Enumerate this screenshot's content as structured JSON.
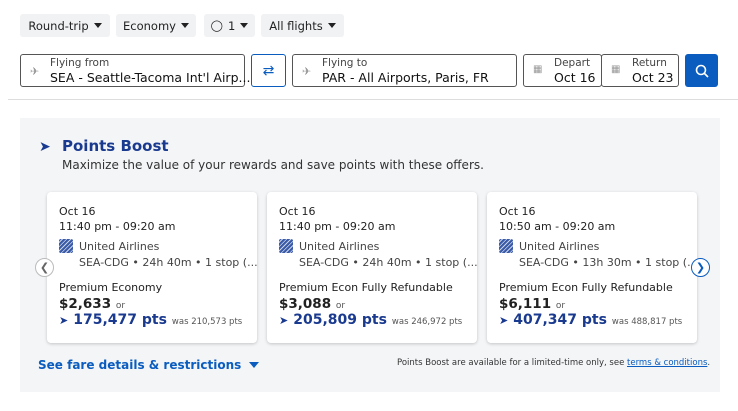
{
  "filters": {
    "trip_type": "Round-trip",
    "cabin": "Economy",
    "passengers": "1",
    "flight_type": "All flights"
  },
  "search": {
    "from_label": "Flying from",
    "from_value": "SEA - Seattle-Tacoma Int'l Airp...",
    "to_label": "Flying to",
    "to_value": "PAR - All Airports, Paris, FR",
    "depart_label": "Depart",
    "depart_value": "Oct 16",
    "return_label": "Return",
    "return_value": "Oct 23"
  },
  "boost": {
    "title": "Points Boost",
    "subtitle": "Maximize the value of your rewards and save points with these offers.",
    "cards": [
      {
        "date": "Oct 16",
        "time": "11:40 pm - 09:20 am",
        "airline": "United Airlines",
        "route": "SEA-CDG",
        "duration": "24h 40m",
        "stops": "1 stop (...",
        "cabin": "Premium Economy",
        "price": "$2,633",
        "or": "or",
        "points": "175,477 pts",
        "was": "was 210,573 pts"
      },
      {
        "date": "Oct 16",
        "time": "11:40 pm - 09:20 am",
        "airline": "United Airlines",
        "route": "SEA-CDG",
        "duration": "24h 40m",
        "stops": "1 stop (...",
        "cabin": "Premium Econ Fully Refundable",
        "price": "$3,088",
        "or": "or",
        "points": "205,809 pts",
        "was": "was 246,972 pts"
      },
      {
        "date": "Oct 16",
        "time": "10:50 am - 09:20 am",
        "airline": "United Airlines",
        "route": "SEA-CDG",
        "duration": "13h 30m",
        "stops": "1 stop (...",
        "cabin": "Premium Econ Fully Refundable",
        "price": "$6,111",
        "or": "or",
        "points": "407,347 pts",
        "was": "was 488,817 pts"
      }
    ],
    "fare_details": "See fare details & restrictions",
    "disclaimer": "Points Boost are available for a limited-time only, see ",
    "terms_link": "terms & conditions",
    "terms_end": "."
  },
  "colors": {
    "accent": "#0a5cbf",
    "points": "#1a3a8f",
    "panel": "#f3f5f7"
  }
}
